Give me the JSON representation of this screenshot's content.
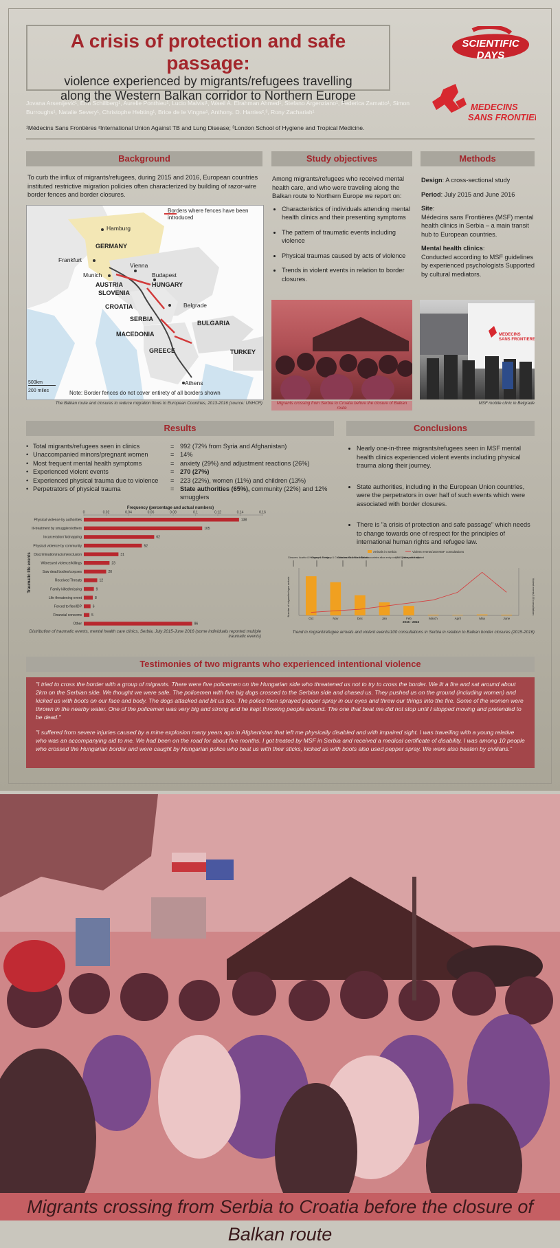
{
  "title": {
    "main": "A crisis of protection and safe passage:",
    "sub_line1": "violence experienced by migrants/refugees travelling",
    "sub_line2": "along the Western Balkan corridor to Northern Europe"
  },
  "logos": {
    "scientific_days": "SCIENTIFIC DAYS",
    "msf": "MEDECINS SANS FRONTIERES"
  },
  "authors": "Jovana Arsenijević¹, Erin Schillberg¹, Aurelie Ponthieu¹, Lucio Malvisi¹, Waeil A. Elrahman Ahmed¹, Stefano Argenziano¹, Federica Zamatto¹, Simon Burroughs¹, Natalie Severy¹, Christophe Hebting¹, Brice de le Vingne¹, Anthony. D. Harries²,³, Rony Zachariah¹",
  "affiliations": "¹Médecins Sans Frontières ²International Union Against TB and Lung Disease; ³London School of Hygiene and Tropical Medicine.",
  "background": {
    "heading": "Background",
    "text": "To curb the influx of migrants/refugees, during 2015 and 2016, European countries instituted restrictive migration policies often characterized by building of razor-wire border fences and border closures.",
    "map_legend": "Borders where fences have been introduced",
    "map_labels": [
      "Hamburg",
      "GERMANY",
      "Frankfurt",
      "Munich",
      "Vienna",
      "Budapest",
      "AUSTRIA",
      "HUNGARY",
      "SLOVENIA",
      "CROATIA",
      "Belgrade",
      "SERBIA",
      "BULGARIA",
      "MACEDONIA",
      "GREECE",
      "TURKEY",
      "Athens"
    ],
    "scale_km": "500km",
    "scale_miles": "200 miles",
    "map_note": "Note: Border fences do not cover entirety of all borders shown",
    "caption": "The Balkan route and closures to reduce migration flows to European Countries, 2013-2016 (source: UNHCR)"
  },
  "objectives": {
    "heading": "Study objectives",
    "intro": "Among migrants/refugees who received mental health care, and who were traveling along the Balkan route to Northern Europe we report on:",
    "items": [
      "Characteristics of individuals attending mental health clinics and their presenting symptoms",
      "The pattern of traumatic events including violence",
      "Physical traumas caused by acts of violence",
      "Trends in violent events in relation to border closures."
    ],
    "photo_caption": "Migrants crossing from Serbia to Croatia before the closure of Balkan route"
  },
  "methods": {
    "heading": "Methods",
    "design_label": "Design",
    "design_value": ": A cross-sectional study",
    "period_label": "Period",
    "period_value": ": July 2015 and June 2016",
    "site_label": "Site",
    "site_value": "Médecins sans Frontières (MSF) mental health clinics in Serbia – a main transit hub to European countries.",
    "clinics_label": "Mental health clinics",
    "clinics_value": "Conducted according to MSF guidelines by experienced psychologists Supported by cultural mediators.",
    "photo_caption": "MSF mobile clinic in Belgrade"
  },
  "results": {
    "heading": "Results",
    "rows": [
      {
        "k": "Total migrants/refugees seen in clinics",
        "v": "992 (72% from Syria and Afghanistan)"
      },
      {
        "k": "Unaccompanied minors/pregnant women",
        "v": "14%"
      },
      {
        "k": "Most frequent mental health symptoms",
        "v": "anxiety (29%) and adjustment reactions (26%)"
      },
      {
        "k": "Experienced violent events",
        "v": "270 (27%)"
      },
      {
        "k": "Experienced physical trauma due to violence",
        "v": "223 (22%), women (11%) and children (13%)"
      },
      {
        "k": "Perpetrators of physical trauma",
        "v_bold": "State authorities (65%),",
        "v": " community (22%) and 12% smugglers"
      }
    ],
    "chart_caption": "Distribution of traumatic events, mental health care clinics, Serbia, July 2015-June 2016 (some individuals reported multiple traumatic events)"
  },
  "conclusions": {
    "heading": "Conclusions",
    "items": [
      "Nearly one-in-three migrants/refugees seen in MSF mental health clinics experienced violent events including physical trauma along their journey.",
      "State authorities, including in the European Union countries, were the perpetrators in over half of such events which were associated with border closures.",
      "There is \"a crisis of protection and safe passage\" which needs to change towards one of respect for the principles of international human rights and refugee law."
    ],
    "chart_caption": "Trend in migrant/refugee arrivals and violent events/100 consultations in Serbia in relation to Balkan border closures (2015-2016)"
  },
  "testimonies": {
    "heading": "Testimonies of two migrants who experienced intentional violence",
    "quote1": "\"I tried to cross the border with a group of migrants. There were five policemen on the Hungarian side who threatened us not to try to cross the border. We lit a fire and sat around about 2km on the Serbian side. We thought we were safe. The policemen with five big dogs crossed to the Serbian side and chased us. They pushed us on the ground (including women) and kicked us with boots on our face and body. The dogs attacked and bit us too. The police then sprayed pepper spray in our eyes and threw our things into the fire. Some of the women were thrown in the nearby water. One of the policemen was very big and strong and he kept throwing people around. The one that beat me did not stop until I stopped moving and pretended to be dead.\"",
    "quote2": "\"I suffered from severe injuries caused by a mine explosion many years ago in Afghanistan that left me physically disabled and with impaired sight. I was travelling with a young relative who was an accompanying aid to me. We had been on the road for about five months. I got treated by MSF in Serbia and received a medical certificate of disability. I was among 10 people who crossed the Hungarian border and were caught by Hungarian police who beat us with their sticks, kicked us with boots also used pepper spray. We were also beaten by civilians.\""
  },
  "bottom_caption": "Migrants crossing from Serbia to Croatia before the closure of Balkan route",
  "colors": {
    "accent": "#a3262c",
    "header_bg": "#a9a69d",
    "bar": "#b8282e",
    "arrivals": "#f0a020",
    "violent_line": "#d44040"
  },
  "chart_data": [
    {
      "type": "bar",
      "orientation": "horizontal",
      "title": "Frequency (percentage and actual numbers)",
      "ylabel": "Traumatic life events",
      "xlim": [
        0,
        0.16
      ],
      "xticks": [
        "0",
        "0.02",
        "0.04",
        "0.06",
        "0.08",
        "0.1",
        "0.12",
        "0.14",
        "0.16"
      ],
      "categories": [
        "Physical violence by authorities",
        "Ill-treatment by smugglers/others",
        "Incarceration/ kidnapping",
        "Physical violence by community",
        "Discrimination/racism/exclusion",
        "Witnessed violence/killings",
        "Saw dead bodies/corpses",
        "Received Threats",
        "Family killed/missing",
        "Life threatening event",
        "Forced to flee/IDP",
        "Financial concerns",
        "Other"
      ],
      "values": [
        138,
        105,
        62,
        52,
        31,
        23,
        20,
        12,
        9,
        8,
        6,
        5,
        96
      ],
      "fractions": [
        0.139,
        0.106,
        0.063,
        0.052,
        0.031,
        0.023,
        0.02,
        0.012,
        0.009,
        0.008,
        0.006,
        0.005,
        0.097
      ]
    },
    {
      "type": "bar",
      "title": "",
      "series": [
        {
          "name": "Arrivals in Serbia",
          "type": "bar",
          "values": [
            165000,
            140000,
            85000,
            55000,
            40000,
            3000,
            2000,
            4000,
            3000
          ]
        },
        {
          "name": "Violent events/100 MSF consultations",
          "type": "line",
          "values": [
            2,
            3,
            4,
            6,
            8,
            10,
            15,
            28,
            15
          ]
        }
      ],
      "categories": [
        "Oct",
        "Nov",
        "Dec",
        "Jan",
        "Feb",
        "March",
        "April",
        "May",
        "June"
      ],
      "xlabel": "2015 - 2016",
      "ylabel": "Number of migrant/refugee arrivals",
      "ylabel_right": "Violent events/100 consultations",
      "ylim": [
        0,
        200000
      ],
      "annotations": [
        "Closures: Austria & Hungary & Serbia",
        "Closures: Hungary & Croatia Austria & Slovenia",
        "Closures: Slovenia & Croatia",
        "Balkan countries allow entry only to Syrians and Iraqis",
        "EU - Turkey deal initiated"
      ]
    }
  ]
}
